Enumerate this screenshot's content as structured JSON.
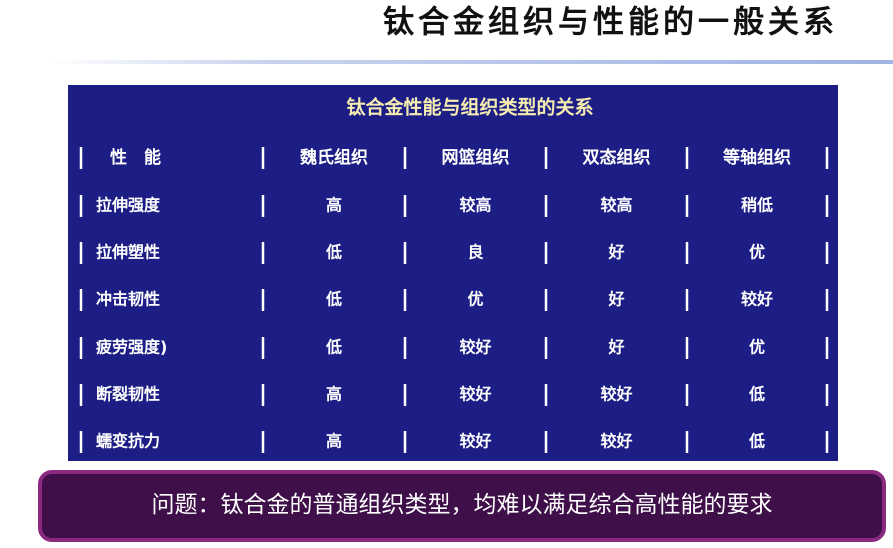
{
  "header": {
    "title": "钛合金组织与性能的一般关系"
  },
  "table": {
    "title": "钛合金性能与组织类型的关系",
    "columns": [
      "性　能",
      "魏氏组织",
      "网篮组织",
      "双态组织",
      "等轴组织"
    ],
    "rows": [
      [
        "拉伸强度",
        "高",
        "较高",
        "较高",
        "稍低"
      ],
      [
        "拉伸塑性",
        "低",
        "良",
        "好",
        "优"
      ],
      [
        "冲击韧性",
        "低",
        "优",
        "好",
        "较好"
      ],
      [
        "疲劳强度)",
        "低",
        "较好",
        "好",
        "优"
      ],
      [
        "断裂韧性",
        "高",
        "较好",
        "较好",
        "低"
      ],
      [
        "蠕变抗力",
        "高",
        "较好",
        "较好",
        "低"
      ]
    ]
  },
  "footer": {
    "text": "问题：钛合金的普通组织类型，均难以满足综合高性能的要求"
  }
}
